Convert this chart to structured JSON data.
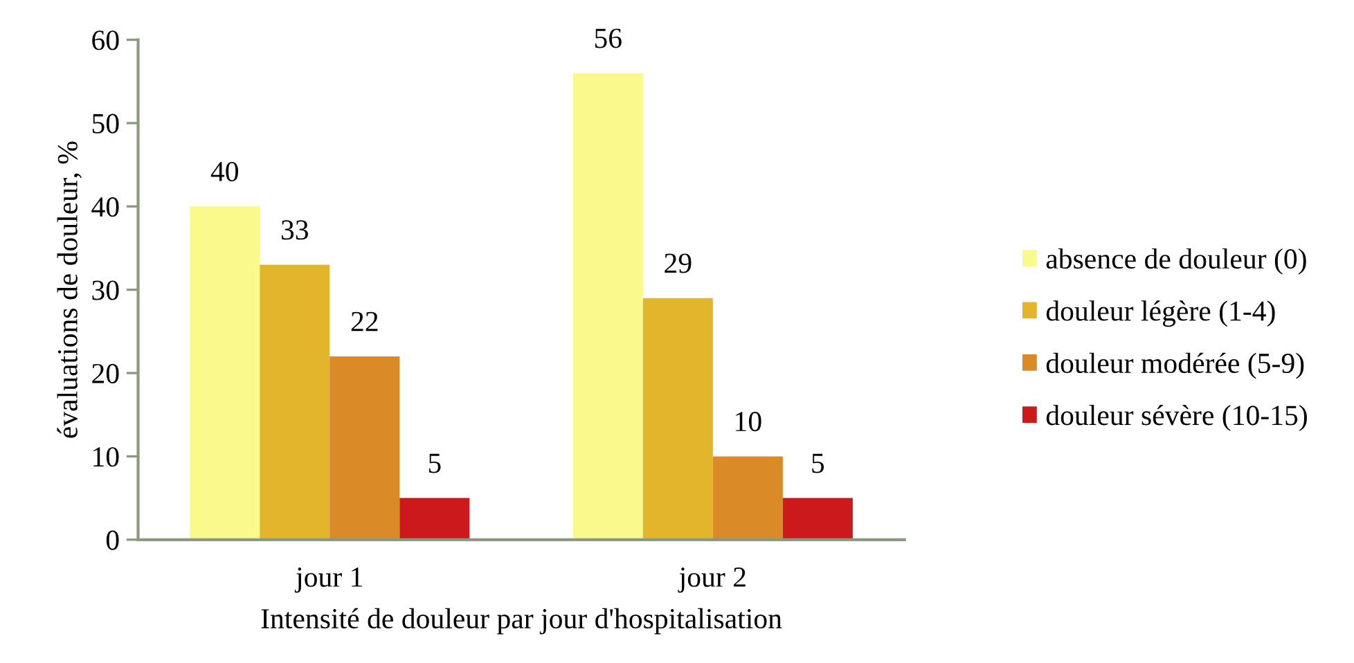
{
  "chart_data": {
    "type": "bar",
    "xlabel": "Intensité de douleur par jour d'hospitalisation",
    "ylabel": "évaluations de douleur, %",
    "categories": [
      "jour 1",
      "jour 2"
    ],
    "series": [
      {
        "name": "absence de douleur (0)",
        "color": "#fafa8c",
        "values": [
          40,
          56
        ]
      },
      {
        "name": "douleur légère (1-4)",
        "color": "#e3b52a",
        "values": [
          33,
          29
        ]
      },
      {
        "name": "douleur modérée (5-9)",
        "color": "#db8a28",
        "values": [
          22,
          10
        ]
      },
      {
        "name": "douleur sévère (10-15)",
        "color": "#cc1a1c",
        "values": [
          5,
          5
        ]
      }
    ],
    "ylim": [
      0,
      60
    ],
    "yticks": [
      0,
      10,
      20,
      30,
      40,
      50,
      60
    ],
    "data_labels": true,
    "legend": "right",
    "grid": false
  }
}
